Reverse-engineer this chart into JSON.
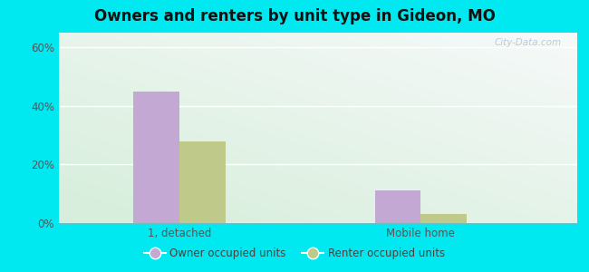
{
  "title": "Owners and renters by unit type in Gideon, MO",
  "categories": [
    "1, detached",
    "Mobile home"
  ],
  "owner_values": [
    45,
    11
  ],
  "renter_values": [
    28,
    3
  ],
  "owner_color": "#c4a8d4",
  "renter_color": "#bec98a",
  "yticks": [
    0,
    20,
    40,
    60
  ],
  "ytick_labels": [
    "0%",
    "20%",
    "40%",
    "60%"
  ],
  "ylim": [
    0,
    65
  ],
  "legend_owner": "Owner occupied units",
  "legend_renter": "Renter occupied units",
  "background_outer": "#00e8f0",
  "watermark": "City-Data.com",
  "bar_width": 0.38,
  "group_positions": [
    1.5,
    3.5
  ]
}
